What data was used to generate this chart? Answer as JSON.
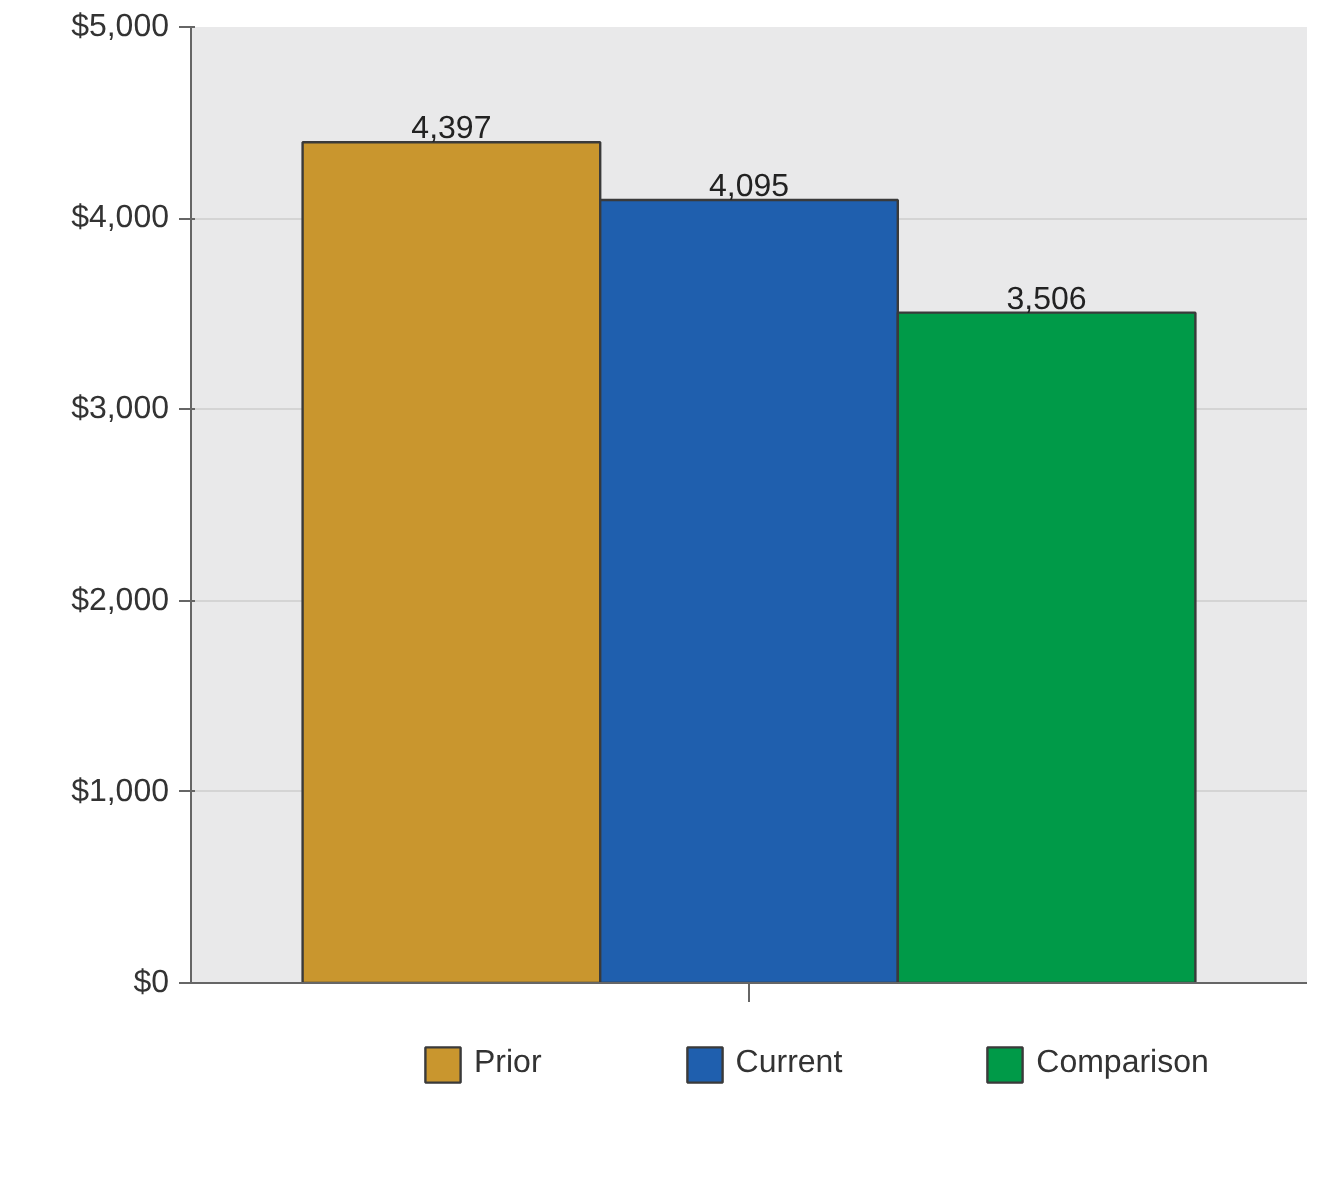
{
  "chart_data": {
    "type": "bar",
    "categories": [
      null
    ],
    "series": [
      {
        "name": "Prior",
        "color": "#c9962e",
        "values": [
          4397
        ],
        "value_labels": [
          "4,397"
        ]
      },
      {
        "name": "Current",
        "color": "#1f5fae",
        "values": [
          4095
        ],
        "value_labels": [
          "4,095"
        ]
      },
      {
        "name": "Comparison",
        "color": "#009a48",
        "values": [
          3506
        ],
        "value_labels": [
          "3,506"
        ]
      }
    ],
    "ylim": [
      0,
      5000
    ],
    "yticks": [
      {
        "value": 0,
        "label": "$0"
      },
      {
        "value": 1000,
        "label": "$1,000"
      },
      {
        "value": 2000,
        "label": "$2,000"
      },
      {
        "value": 3000,
        "label": "$3,000"
      },
      {
        "value": 4000,
        "label": "$4,000"
      },
      {
        "value": 5000,
        "label": "$5,000"
      }
    ],
    "grid": "y",
    "legend": "bottom"
  }
}
